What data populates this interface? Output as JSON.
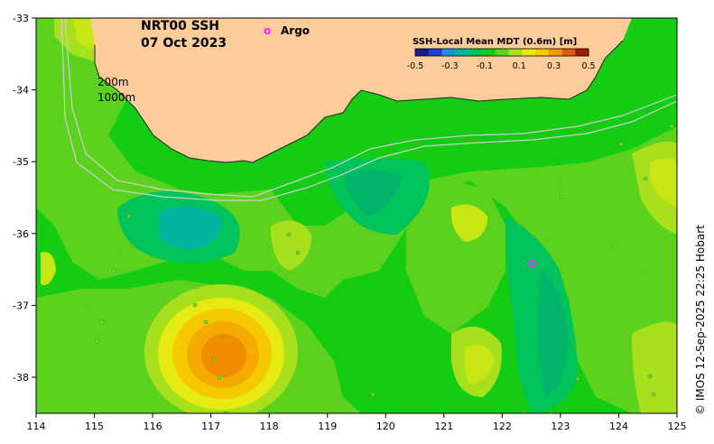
{
  "map": {
    "title_line1": "NRT00 SSH",
    "title_line2": "07 Oct 2023",
    "legend_argo_symbol": "o",
    "legend_argo_label": "Argo",
    "colorbar_title": "SSH-Local Mean MDT (0.6m) [m]",
    "colorbar_ticks": [
      "-0.5",
      "-0.3",
      "-0.1",
      "0.1",
      "0.3",
      "0.5"
    ],
    "colorbar_colors": [
      "#1a1a8c",
      "#1d3fd6",
      "#1f8fe0",
      "#00b4a0",
      "#00c45a",
      "#14cc14",
      "#5cd21e",
      "#a8e01e",
      "#e6ea12",
      "#f5c800",
      "#f59a00",
      "#e05a00",
      "#a01e00"
    ],
    "isobath_label_1": "200m",
    "isobath_label_2": "1000m",
    "x_ticks": [
      "114",
      "115",
      "116",
      "117",
      "118",
      "119",
      "120",
      "121",
      "122",
      "123",
      "124",
      "125"
    ],
    "y_ticks": [
      "-33",
      "-34",
      "-35",
      "-36",
      "-37",
      "-38"
    ],
    "credit": "© IMOS 12-Sep-2025 22:25 Hobart",
    "colors": {
      "land": "#fccc9a",
      "ocean_base": "#14cc14",
      "warm_core": "#f08c00",
      "argo_marker": "#ff22ff",
      "isobath": "#cfcfcf"
    }
  }
}
